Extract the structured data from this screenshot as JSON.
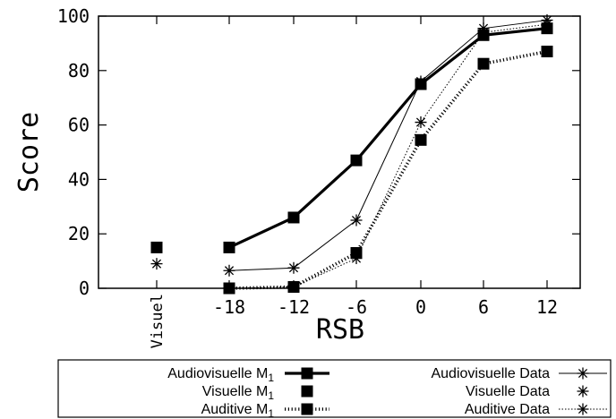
{
  "chart_data": {
    "type": "line",
    "ylabel": "Score",
    "xlabel": "RSB",
    "x_categories": [
      "Visuel",
      "-18",
      "-12",
      "-6",
      "0",
      "6",
      "12"
    ],
    "ylim": [
      0,
      100
    ],
    "yticks": [
      0,
      20,
      40,
      60,
      80,
      100
    ],
    "grid": false,
    "legend_position": "bottom",
    "series": [
      {
        "name": "Audiovisuelle M",
        "name_sub": "1",
        "style": "model",
        "line": "thick",
        "marker": "square",
        "x": [
          "-18",
          "-12",
          "-6",
          "0",
          "6",
          "12"
        ],
        "values": [
          15,
          26,
          47,
          75,
          93,
          95.5
        ]
      },
      {
        "name": "Visuelle M",
        "name_sub": "1",
        "style": "model",
        "line": "none",
        "marker": "square",
        "x": [
          "Visuel"
        ],
        "values": [
          15
        ]
      },
      {
        "name": "Auditive M",
        "name_sub": "1",
        "style": "model",
        "line": "thick-dotted",
        "marker": "square",
        "x": [
          "-18",
          "-12",
          "-6",
          "0",
          "6",
          "12"
        ],
        "values": [
          0,
          0.5,
          13,
          54.5,
          82.5,
          87
        ]
      },
      {
        "name": "Audiovisuelle Data",
        "style": "data",
        "line": "thin",
        "marker": "star",
        "x": [
          "-18",
          "-12",
          "-6",
          "0",
          "6",
          "12"
        ],
        "values": [
          6.5,
          7.5,
          25,
          76,
          95.5,
          98.5
        ]
      },
      {
        "name": "Visuelle Data",
        "style": "data",
        "line": "none",
        "marker": "star",
        "x": [
          "Visuel"
        ],
        "values": [
          9
        ]
      },
      {
        "name": "Auditive Data",
        "style": "data",
        "line": "thin-dotted",
        "marker": "star",
        "x": [
          "-18",
          "-12",
          "-6",
          "0",
          "6",
          "12"
        ],
        "values": [
          0,
          0.5,
          11,
          61,
          94,
          97
        ]
      }
    ]
  }
}
